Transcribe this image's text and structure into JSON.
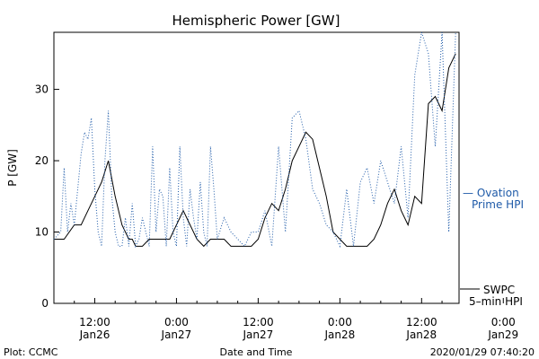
{
  "chart_data": {
    "type": "line",
    "title": "Hemispheric Power [GW]",
    "ylabel": "P [GW]",
    "xlabel": "Date and Time",
    "ylim": [
      0,
      38
    ],
    "xlim_hours": [
      -18,
      41.5
    ],
    "yticks": [
      {
        "value": 0,
        "label": "0"
      },
      {
        "value": 10,
        "label": "10"
      },
      {
        "value": 20,
        "label": "20"
      },
      {
        "value": 30,
        "label": "30"
      }
    ],
    "xticks": [
      {
        "hours": -12,
        "label_top": "12:00",
        "label_bottom": "Jan26"
      },
      {
        "hours": 0,
        "label_top": "0:00",
        "label_bottom": "Jan27"
      },
      {
        "hours": 12,
        "label_top": "12:00",
        "label_bottom": "Jan27"
      },
      {
        "hours": 24,
        "label_top": "0:00",
        "label_bottom": "Jan28"
      },
      {
        "hours": 36,
        "label_top": "12:00",
        "label_bottom": "Jan28"
      },
      {
        "hours": 48,
        "label_top": "0:00",
        "label_bottom": "Jan29"
      }
    ],
    "series": [
      {
        "name": "SWPC 5-min HPI",
        "style": "solid",
        "color": "#000000",
        "x": [
          -18,
          -16.5,
          -15,
          -14,
          -13,
          -12,
          -11,
          -10,
          -9,
          -8,
          -7,
          -6.5,
          -6,
          -5.5,
          -5,
          -4,
          -3,
          -2,
          -1,
          0,
          1,
          2,
          3,
          4,
          5,
          6,
          7,
          8,
          9,
          10,
          11,
          12,
          13,
          14,
          15,
          16,
          17,
          18,
          19,
          20,
          21,
          22,
          23,
          24,
          25,
          26,
          27,
          28,
          29,
          30,
          31,
          32,
          33,
          34,
          35,
          36,
          37,
          38,
          39,
          40,
          41
        ],
        "y": [
          9,
          9,
          11,
          11,
          13,
          15,
          17,
          20,
          15,
          11,
          9,
          9,
          8,
          8,
          8,
          9,
          9,
          9,
          9,
          11,
          13,
          11,
          9,
          8,
          9,
          9,
          9,
          8,
          8,
          8,
          8,
          9,
          12,
          14,
          13,
          16,
          20,
          22,
          24,
          23,
          19,
          15,
          10,
          9,
          8,
          8,
          8,
          8,
          9,
          11,
          14,
          16,
          13,
          11,
          15,
          14,
          28,
          29,
          27,
          33,
          35
        ]
      },
      {
        "name": "Ovation Prime HPI",
        "style": "dotted",
        "color": "#1e5aa8",
        "x": [
          -18,
          -17,
          -16.5,
          -16,
          -15.5,
          -15,
          -14,
          -13.5,
          -13,
          -12.5,
          -12,
          -11.5,
          -11,
          -10.5,
          -10,
          -9.5,
          -9,
          -8.5,
          -8,
          -7.5,
          -7,
          -6.5,
          -6,
          -5.5,
          -5,
          -4,
          -3.5,
          -3,
          -2.5,
          -2,
          -1.5,
          -1,
          -0.5,
          0,
          0.5,
          1,
          1.5,
          2,
          2.5,
          3,
          3.5,
          4,
          4.5,
          5,
          5.5,
          6,
          7,
          8,
          9,
          10,
          11,
          12,
          13,
          14,
          15,
          16,
          17,
          18,
          19,
          20,
          21,
          22,
          23,
          24,
          25,
          26,
          27,
          28,
          29,
          30,
          31,
          32,
          33,
          34,
          35,
          36,
          37,
          38,
          39,
          40,
          41
        ],
        "y": [
          9,
          10,
          19,
          10,
          14,
          11,
          21,
          24,
          23,
          26,
          16,
          10,
          8,
          20,
          27,
          15,
          10,
          8,
          8,
          12,
          8,
          14,
          8,
          9,
          12,
          8,
          22,
          10,
          16,
          15,
          8,
          19,
          10,
          8,
          22,
          12,
          8,
          16,
          12,
          9,
          17,
          10,
          8,
          22,
          16,
          9,
          12,
          10,
          9,
          8,
          10,
          10,
          13,
          8,
          22,
          10,
          26,
          27,
          23,
          16,
          14,
          11,
          10,
          8,
          16,
          8,
          17,
          19,
          14,
          20,
          17,
          14,
          22,
          12,
          32,
          38,
          35,
          22,
          38,
          10,
          38
        ]
      }
    ],
    "legend": [
      {
        "line1": "— Ovation",
        "line2": "Prime HPI",
        "color": "#1e5aa8"
      },
      {
        "line1": "SWPC",
        "line2": "5–min HPI",
        "color": "#000000"
      }
    ]
  },
  "footer": {
    "left": "Plot: CCMC",
    "center": "Date and Time",
    "right": "2020/01/29  07:40:20"
  }
}
